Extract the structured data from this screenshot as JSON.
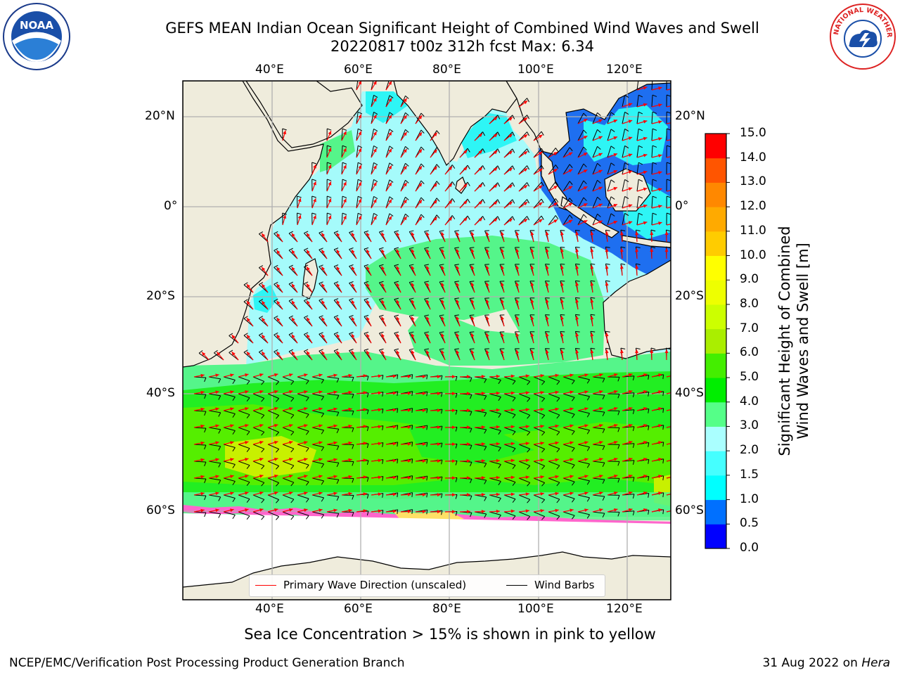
{
  "title_line1": "GEFS MEAN Indian Ocean Significant Height of Combined Wind Waves and Swell",
  "title_line2": "20220817 t00z 312h fcst   Max: 6.34",
  "logos": {
    "noaa_text": "NOAA",
    "nws_text": "NATIONAL WEATHER SERVICE",
    "noaa_ring_text": "NATIONAL OCEANIC AND ATMOSPHERIC ADMINISTRATION · U.S. DEPARTMENT OF COMMERCE"
  },
  "map": {
    "lon_ticks": [
      "40°E",
      "60°E",
      "80°E",
      "100°E",
      "120°E"
    ],
    "lat_ticks_left": [
      "20°N",
      "0°",
      "20°S",
      "40°S",
      "60°S"
    ],
    "lat_ticks_right": [
      "20°N",
      "0°",
      "20°S",
      "40°S",
      "60°S"
    ],
    "colors": {
      "land": "#efecdc",
      "ice": "#ffffff",
      "wave_arrow": "#ff0000",
      "wind_barb": "#000000",
      "grid": "#b0b0b0"
    }
  },
  "colorbar": {
    "label_line1": "Significant Height of Combined",
    "label_line2": "Wind Waves and Swell [m]",
    "ticks": [
      "0.0",
      "0.5",
      "1.0",
      "1.5",
      "2.0",
      "3.0",
      "4.0",
      "5.0",
      "6.0",
      "7.0",
      "8.0",
      "9.0",
      "10.0",
      "11.0",
      "12.0",
      "13.0",
      "14.0",
      "15.0"
    ],
    "colors": [
      "#0000ff",
      "#0070ff",
      "#00ffff",
      "#45ffff",
      "#aaffff",
      "#55ff88",
      "#00ee00",
      "#44ee00",
      "#aaee00",
      "#ccff00",
      "#eeff00",
      "#ffff00",
      "#ffcc00",
      "#ffaa00",
      "#ff8800",
      "#ff5500",
      "#ff0000"
    ]
  },
  "legend": {
    "wave_label": "Primary Wave Direction (unscaled)",
    "wind_label": "Wind Barbs"
  },
  "caption": "Sea Ice Concentration > 15% is shown in pink to yellow",
  "footer_left": "NCEP/EMC/Verification Post Processing Product Generation Branch",
  "footer_date": "31 Aug 2022 on",
  "footer_host": "Hera"
}
